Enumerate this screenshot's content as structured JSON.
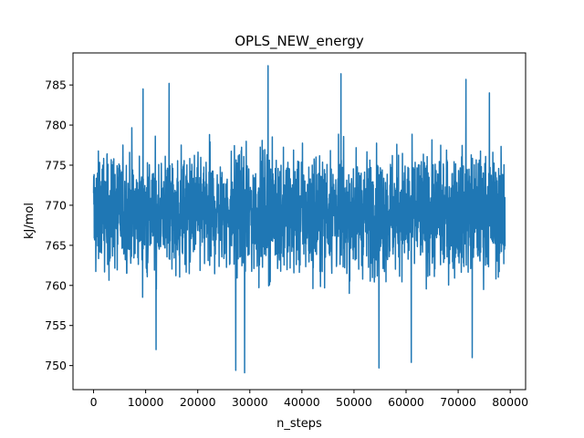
{
  "chart_data": {
    "type": "line",
    "title": "OPLS_NEW_energy",
    "xlabel": "n_steps",
    "ylabel": "kJ/mol",
    "xlim": [
      -3950,
      82950
    ],
    "ylim": [
      747,
      789
    ],
    "xticks": [
      0,
      10000,
      20000,
      30000,
      40000,
      50000,
      60000,
      70000,
      80000
    ],
    "yticks": [
      750,
      755,
      760,
      765,
      770,
      775,
      780,
      785
    ],
    "grid": false,
    "legend": "none",
    "series": [
      {
        "color": "#1f77b4",
        "x_start": 0,
        "x_end": 79000,
        "n_points": 2400,
        "mean": 769.0,
        "typical_range": [
          759,
          779
        ],
        "extrema": [
          {
            "x": 33500,
            "y": 787.4
          },
          {
            "x": 47500,
            "y": 786.4
          },
          {
            "x": 71500,
            "y": 785.7
          },
          {
            "x": 14500,
            "y": 785.2
          },
          {
            "x": 9500,
            "y": 784.5
          },
          {
            "x": 76000,
            "y": 784.0
          },
          {
            "x": 29000,
            "y": 749.1
          },
          {
            "x": 27300,
            "y": 749.4
          },
          {
            "x": 54800,
            "y": 749.7
          },
          {
            "x": 72700,
            "y": 751.0
          },
          {
            "x": 61000,
            "y": 750.4
          },
          {
            "x": 12000,
            "y": 752.0
          }
        ]
      }
    ]
  }
}
